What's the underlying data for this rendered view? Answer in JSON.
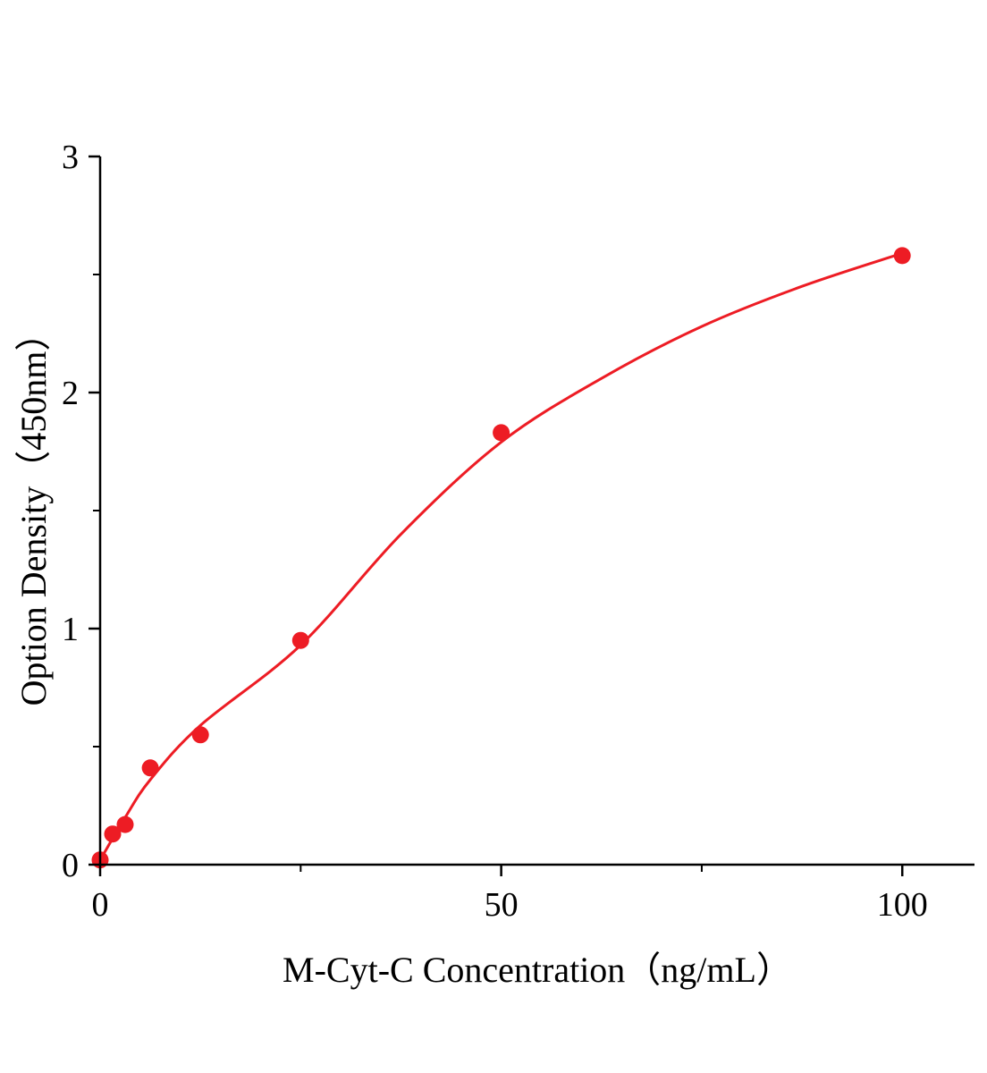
{
  "chart_data": {
    "type": "scatter",
    "title": "",
    "xlabel": "M-Cyt-C Concentration（ng/mL）",
    "ylabel": "Option Density（450nm）",
    "xlim": [
      0,
      109
    ],
    "ylim": [
      0,
      3
    ],
    "grid": false,
    "legend_position": "none",
    "axis_color": "#000000",
    "accent_color": "#ed1c24",
    "x_axis": {
      "major_ticks": [
        0,
        50,
        100
      ],
      "major_tick_labels": [
        "0",
        "50",
        "100"
      ],
      "minor_ticks": [
        25,
        75
      ]
    },
    "y_axis": {
      "major_ticks": [
        0,
        1,
        2,
        3
      ],
      "major_tick_labels": [
        "0",
        "1",
        "2",
        "3"
      ],
      "minor_ticks": [
        0.5,
        1.5,
        2.5
      ]
    },
    "series": [
      {
        "name": "standard-points",
        "type": "scatter",
        "color": "#ed1c24",
        "marker": "circle",
        "marker_radius": 9.5,
        "x": [
          0,
          1.563,
          3.125,
          6.25,
          12.5,
          25,
          50,
          100
        ],
        "y": [
          0.02,
          0.13,
          0.17,
          0.41,
          0.55,
          0.95,
          1.83,
          2.58
        ]
      },
      {
        "name": "fit-curve",
        "type": "line",
        "color": "#ed1c24",
        "stroke_width": 3,
        "x": [
          0,
          3.125,
          6.25,
          12.5,
          25,
          37.5,
          50,
          62.5,
          75,
          87.5,
          100
        ],
        "y": [
          0.02,
          0.2,
          0.36,
          0.59,
          0.93,
          1.4,
          1.79,
          2.06,
          2.28,
          2.45,
          2.59
        ]
      }
    ]
  }
}
